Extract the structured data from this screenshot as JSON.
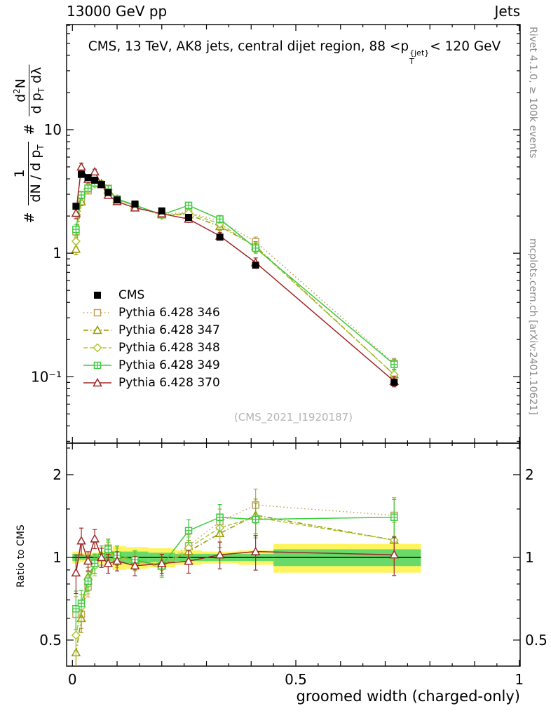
{
  "header": {
    "left": "13000 GeV pp",
    "right": "Jets"
  },
  "title": {
    "pre": "CMS, 13 TeV, AK8 jets, central dijet region, 88 <p",
    "sub": "T",
    "sup": "{jet}",
    "post": "< 120 GeV"
  },
  "right_margin": {
    "top": "Rivet 4.1.0, ≥ 100k events",
    "bottom": "mcplots.cern.ch [arXiv:2401.10621]"
  },
  "watermark": "(CMS_2021_I1920187)",
  "xlabel": "groomed width (charged-only)",
  "ratio_ylabel": "Ratio to CMS",
  "ylabel_main": {
    "hash1": "#",
    "frac1_num": "1",
    "frac1_den_pre": "dN / d p",
    "frac1_den_sub": "T",
    "hash2": "#",
    "frac2_num_pre": "d",
    "frac2_num_sup": "2",
    "frac2_num_post": "N",
    "frac2_den_pre": "d p",
    "frac2_den_sub": "T",
    "frac2_den_post": " dλ"
  },
  "axes": {
    "x": {
      "min": -0.013,
      "max": 1.002,
      "major_ticks": [
        {
          "v": 0,
          "label": "0"
        },
        {
          "v": 0.5,
          "label": "0.5"
        },
        {
          "v": 1,
          "label": "1"
        }
      ]
    },
    "y_main": {
      "scale": "log",
      "min": 0.029,
      "max": 71,
      "major_ticks": [
        {
          "v": 10,
          "label": "10"
        },
        {
          "v": 1,
          "label": "1"
        },
        {
          "v": 0.1,
          "label": "10⁻¹"
        }
      ]
    },
    "y_ratio": {
      "scale": "log",
      "min": 0.402,
      "max": 2.605,
      "major_ticks": [
        {
          "v": 2,
          "label": "2"
        },
        {
          "v": 1,
          "label": "1"
        },
        {
          "v": 0.5,
          "label": "0.5"
        }
      ],
      "minor_ticks": [
        0.6,
        0.7,
        0.8,
        0.9,
        1.5,
        2.5
      ]
    }
  },
  "chart_data": {
    "type": "line",
    "x": [
      0.008,
      0.02,
      0.035,
      0.05,
      0.065,
      0.08,
      0.1,
      0.14,
      0.2,
      0.26,
      0.33,
      0.41,
      0.72
    ],
    "mc_rel_err": [
      0.1,
      0.07,
      0.05,
      0.05,
      0.05,
      0.05,
      0.05,
      0.05,
      0.05,
      0.06,
      0.07,
      0.09,
      0.1
    ],
    "series": [
      {
        "name": "CMS",
        "color": "#000000",
        "marker": "filled-square",
        "line": "none",
        "values": [
          2.4,
          4.35,
          4.1,
          3.9,
          3.6,
          3.1,
          2.7,
          2.5,
          2.2,
          1.95,
          1.35,
          0.8,
          0.09
        ],
        "rel_err": [
          0.05,
          0.04,
          0.03,
          0.03,
          0.03,
          0.03,
          0.03,
          0.03,
          0.03,
          0.04,
          0.04,
          0.05,
          0.06
        ]
      },
      {
        "name": "Pythia 6.428 346",
        "color": "#c2a05e",
        "marker": "open-square",
        "line": "dotted",
        "values": [
          1.49,
          2.7,
          3.2,
          3.71,
          3.6,
          3.35,
          2.7,
          2.43,
          2.05,
          2.15,
          1.82,
          1.24,
          0.128
        ]
      },
      {
        "name": "Pythia 6.428 347",
        "color": "#999900",
        "marker": "open-triangle",
        "line": "dashdot",
        "values": [
          1.08,
          2.61,
          3.49,
          3.71,
          3.67,
          3.26,
          2.75,
          2.43,
          2.05,
          2.05,
          1.65,
          1.14,
          0.104
        ]
      },
      {
        "name": "Pythia 6.428 348",
        "color": "#abc837",
        "marker": "open-diamond",
        "line": "dashed",
        "values": [
          1.25,
          2.87,
          3.28,
          3.63,
          3.6,
          3.26,
          2.7,
          2.43,
          2.02,
          2.11,
          1.73,
          1.12,
          0.104
        ]
      },
      {
        "name": "Pythia 6.428 349",
        "color": "#3fca3f",
        "marker": "square-plus",
        "line": "solid",
        "values": [
          1.56,
          2.96,
          3.36,
          3.71,
          3.6,
          3.32,
          2.75,
          2.45,
          2.05,
          2.44,
          1.89,
          1.1,
          0.126
        ]
      },
      {
        "name": "Pythia 6.428 370",
        "color": "#a02828",
        "marker": "open-triangle",
        "line": "solid",
        "values": [
          2.11,
          5.0,
          3.98,
          4.56,
          3.6,
          2.95,
          2.62,
          2.33,
          2.09,
          1.89,
          1.38,
          0.84,
          0.092
        ]
      }
    ],
    "bands": {
      "edges": [
        0.0,
        0.015,
        0.028,
        0.042,
        0.058,
        0.072,
        0.09,
        0.12,
        0.17,
        0.23,
        0.29,
        0.37,
        0.45,
        0.78
      ],
      "yellow_half": [
        0.05,
        0.04,
        0.04,
        0.04,
        0.05,
        0.06,
        0.1,
        0.09,
        0.08,
        0.06,
        0.05,
        0.06,
        0.12
      ],
      "green_half": [
        0.03,
        0.02,
        0.02,
        0.02,
        0.03,
        0.03,
        0.05,
        0.05,
        0.04,
        0.03,
        0.03,
        0.03,
        0.07
      ],
      "yellow_color": "#fff45e",
      "green_color": "#69da69"
    },
    "title": "CMS, 13 TeV, AK8 jets, central dijet region, 88 < pT(jet) < 120 GeV",
    "xlabel": "groomed width (charged-only)",
    "ylabel": "# 1/(dN/dpT) # d2N/(dpT dlambda)",
    "legend_position": "middle-left",
    "grid": "off"
  }
}
